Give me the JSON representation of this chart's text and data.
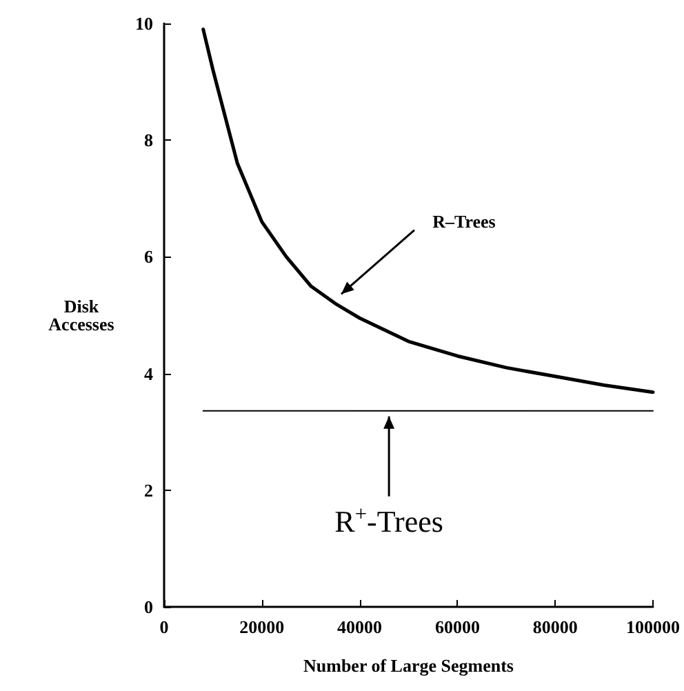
{
  "chart_data": {
    "type": "line",
    "xlabel": "Number of Large Segments",
    "ylabel": "Disk Accesses",
    "xlim": [
      0,
      100000
    ],
    "xticks": [
      0,
      20000,
      40000,
      60000,
      80000,
      100000
    ],
    "ylim": [
      0,
      10
    ],
    "yticks": [
      0,
      2,
      4,
      6,
      8,
      10
    ],
    "grid": false,
    "marker": "none",
    "line_style": "solid",
    "series": [
      {
        "color": "#000000",
        "x": [
          8000,
          10000,
          15000,
          20000,
          25000,
          30000,
          35000,
          40000,
          50000,
          60000,
          70000,
          80000,
          90000,
          100000
        ],
        "values": [
          9.9,
          9.2,
          7.6,
          6.6,
          6.0,
          5.5,
          5.2,
          4.95,
          4.55,
          4.3,
          4.1,
          3.95,
          3.8,
          3.68
        ]
      },
      {
        "color": "#000000",
        "x": [
          8000,
          100000
        ],
        "values": [
          3.36,
          3.36
        ]
      }
    ],
    "annotations": [
      {
        "text": "R–Trees",
        "x": 35400,
        "y": 5.3
      },
      {
        "text": "R$^{+}$-Trees",
        "x": 46000,
        "y": 3.36
      }
    ]
  }
}
